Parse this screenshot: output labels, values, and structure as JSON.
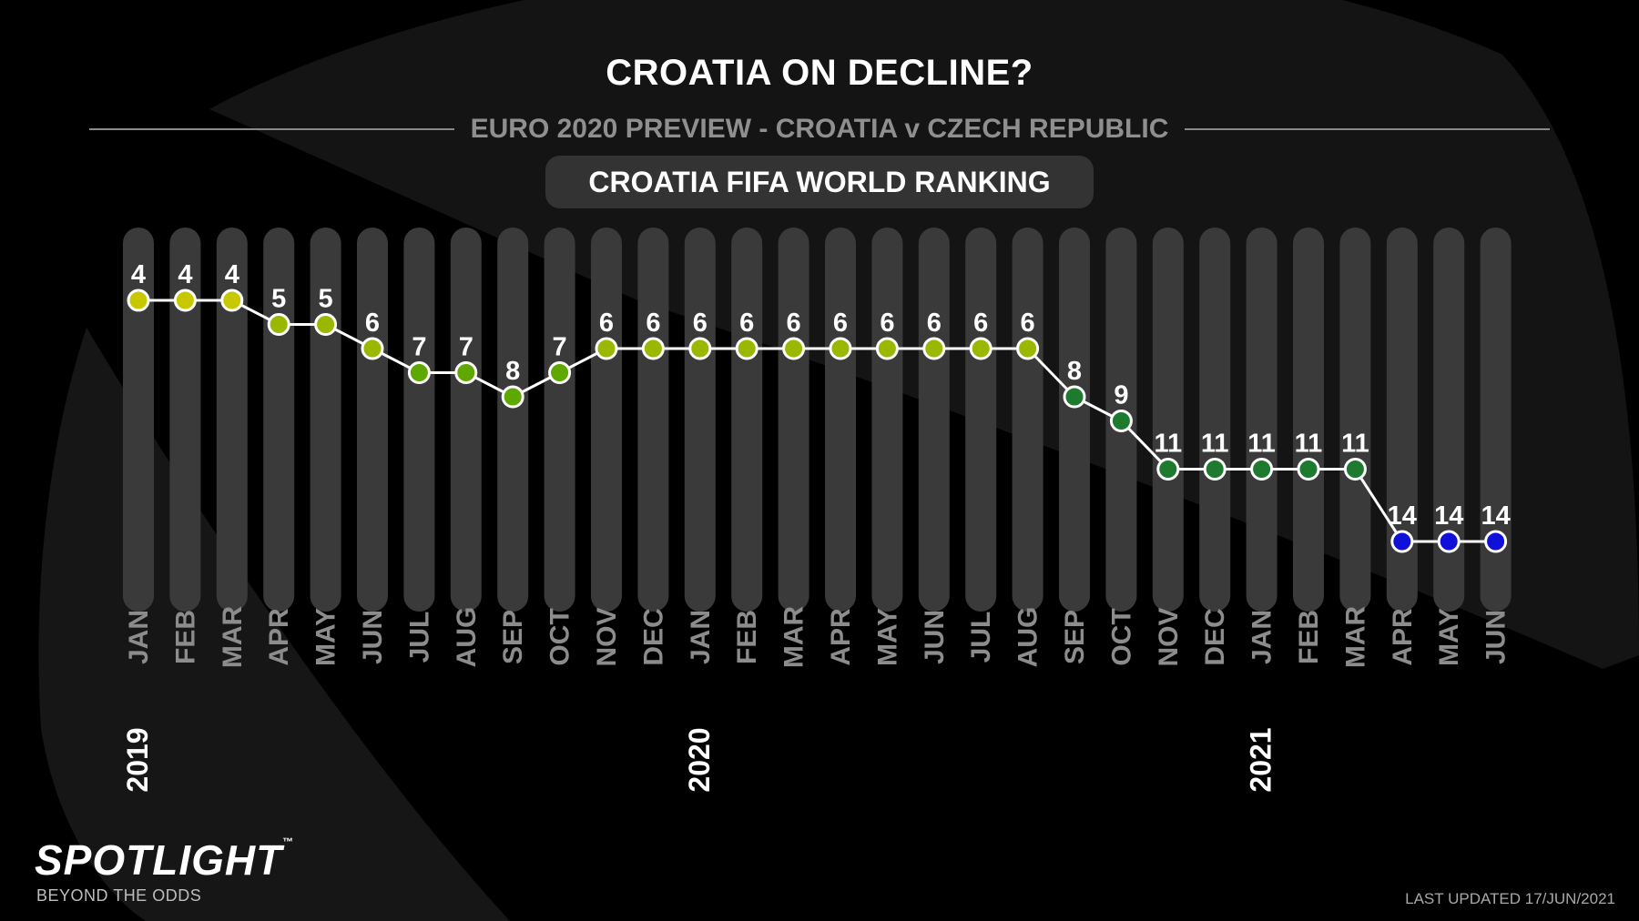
{
  "header": {
    "title": "CROATIA ON DECLINE?",
    "subtitle": "EURO 2020 PREVIEW - CROATIA v CZECH REPUBLIC",
    "badge": "CROATIA FIFA WORLD RANKING"
  },
  "footer": {
    "logo": "SPOTLIGHT",
    "logo_tm": "™",
    "tagline": "BEYOND THE ODDS",
    "last_updated": "LAST UPDATED 17/JUN/2021"
  },
  "chart_data": {
    "type": "line",
    "categories": [
      "JAN",
      "FEB",
      "MAR",
      "APR",
      "MAY",
      "JUN",
      "JUL",
      "AUG",
      "SEP",
      "OCT",
      "NOV",
      "DEC",
      "JAN",
      "FEB",
      "MAR",
      "APR",
      "MAY",
      "JUN",
      "JUL",
      "AUG",
      "SEP",
      "OCT",
      "NOV",
      "DEC",
      "JAN",
      "FEB",
      "MAR",
      "APR",
      "MAY",
      "JUN"
    ],
    "year_labels": [
      {
        "label": "2019",
        "index": 0
      },
      {
        "label": "2020",
        "index": 12
      },
      {
        "label": "2021",
        "index": 24
      }
    ],
    "values": [
      4,
      4,
      4,
      5,
      5,
      6,
      7,
      7,
      8,
      7,
      6,
      6,
      6,
      6,
      6,
      6,
      6,
      6,
      6,
      6,
      8,
      9,
      11,
      11,
      11,
      11,
      11,
      14,
      14,
      14
    ],
    "y_axis": "inverted ranking (lower rank number plotted higher)",
    "ylim": [
      4,
      14
    ],
    "grid": false,
    "marker_colors": {
      "yellow": "#c8c800",
      "yellow_green": "#9ab800",
      "green_light": "#5ea800",
      "green_dark": "#1e7a2e",
      "blue": "#1010d8"
    },
    "line_color": "#ffffff",
    "column_color": "#3a3a3a"
  }
}
